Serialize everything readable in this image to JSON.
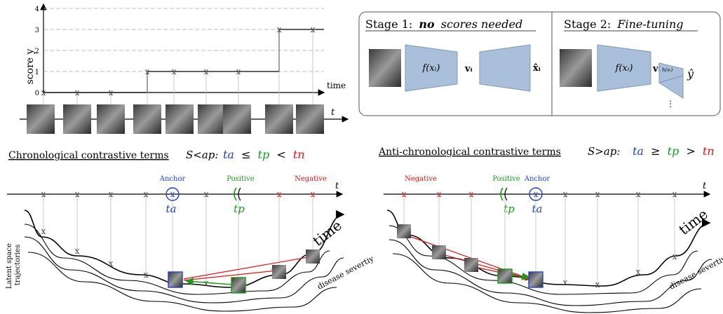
{
  "score_chart": {
    "ylabel": "score y",
    "xlabel": "time",
    "y_ticks": [
      "0",
      "1",
      "2",
      "3",
      "4"
    ],
    "timeline_label": "t",
    "points_y": [
      0,
      0,
      0,
      1,
      1,
      1,
      1,
      3,
      3
    ]
  },
  "stages": {
    "stage1": {
      "label": "Stage 1:",
      "bold_part": "no",
      "italic_part": "scores needed",
      "enc": "f(xᵢ)",
      "latent": "vᵢ",
      "recon": "x̂ᵢ"
    },
    "stage2": {
      "label": "Stage 2:",
      "italic_part": "Fine-tuning",
      "enc": "f(xᵢ)",
      "latent": "vᵢ",
      "head": "h(vᵢ)",
      "out": "ŷ",
      "dots": "⋮"
    }
  },
  "chrono": {
    "title": "Chronological contrastive terms",
    "set_symbol": "S<ap:",
    "rel_ta": "ta",
    "rel_le": "≤",
    "rel_tp": "tp",
    "rel_lt": "<",
    "rel_tn": "tn",
    "anchor": "Anchor",
    "positive": "Positive",
    "negative": "Negative",
    "t": "t",
    "ta_label": "ta",
    "tp_label": "tp",
    "side_label_1": "Latent space",
    "side_label_2": "trajectories",
    "time": "time",
    "severity": "disease severtiy"
  },
  "anti": {
    "title": "Anti-chronological contrastive terms",
    "set_symbol": "S>ap:",
    "rel_ta": "ta",
    "rel_ge": "≥",
    "rel_tp": "tp",
    "rel_gt": ">",
    "rel_tn": "tn",
    "anchor": "Anchor",
    "positive": "Positive",
    "negative": "Negative",
    "t": "t",
    "ta_label": "ta",
    "tp_label": "tp",
    "time": "time",
    "severity": "disease severtiy"
  },
  "colors": {
    "anchor": "#1f3fd6",
    "positive": "#1a9a1a",
    "negative": "#e01515",
    "block": "#a9bfda"
  }
}
